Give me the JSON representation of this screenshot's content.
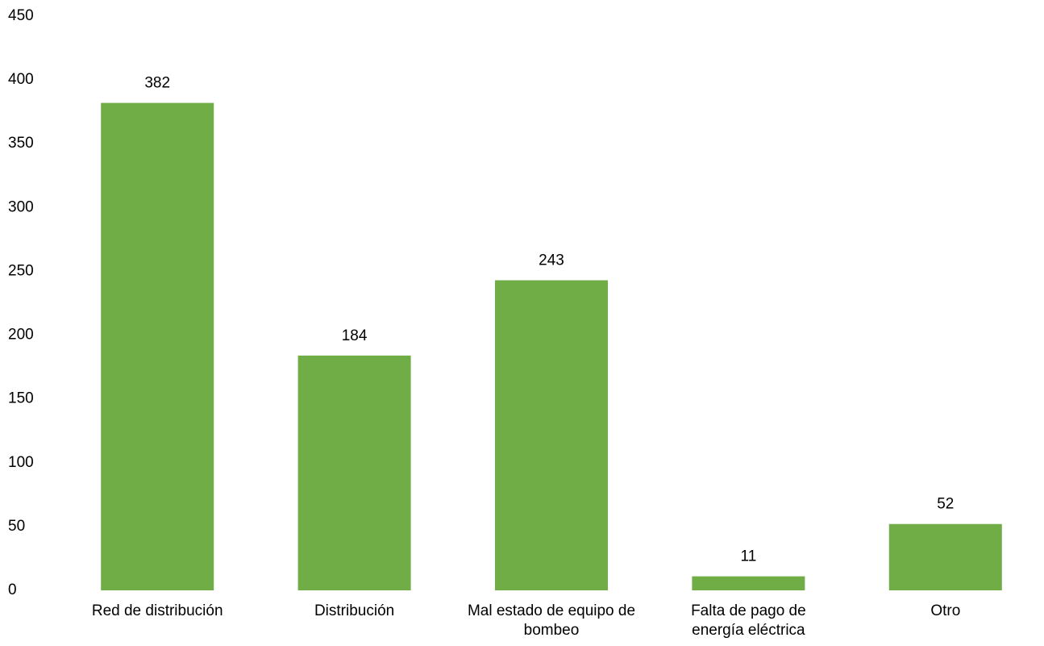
{
  "chart_data": {
    "type": "bar",
    "categories": [
      "Red de distribución",
      "Distribución",
      "Mal estado de equipo de bombeo",
      "Falta de pago de energía eléctrica",
      "Otro"
    ],
    "values": [
      382,
      184,
      243,
      11,
      52
    ],
    "color": "#70ad47",
    "ylim": [
      0,
      450
    ],
    "yticks": [
      0,
      50,
      100,
      150,
      200,
      250,
      300,
      350,
      400,
      450
    ],
    "grid": false,
    "data_labels": true
  }
}
